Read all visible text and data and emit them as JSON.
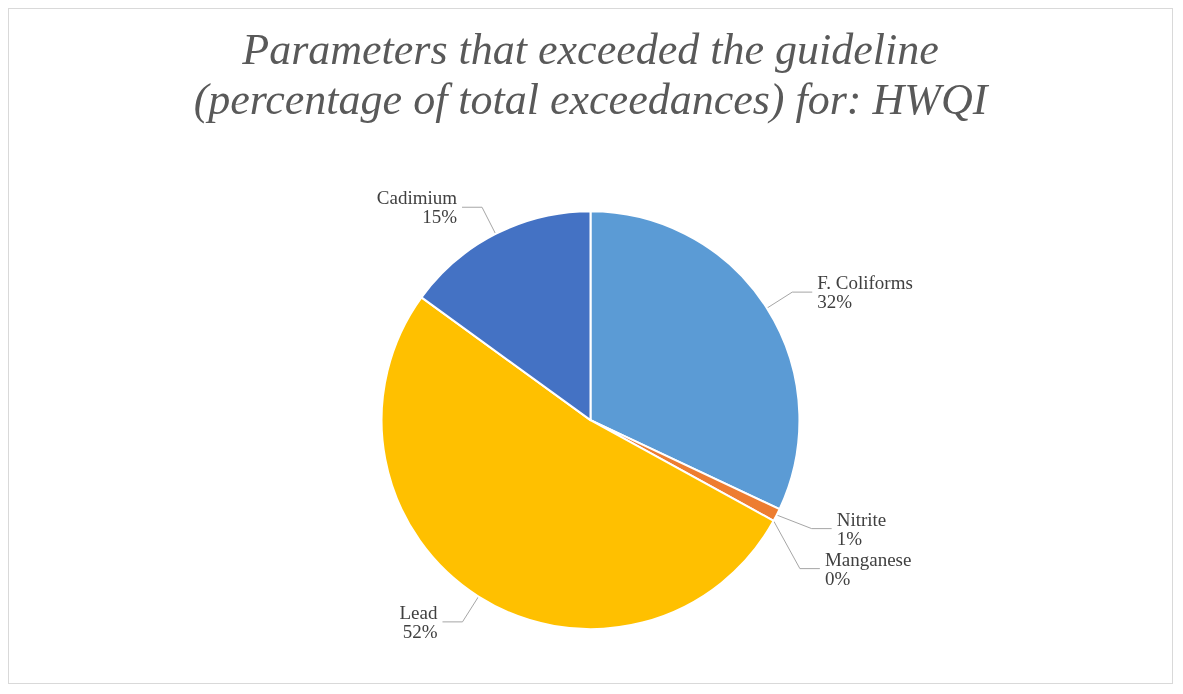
{
  "chart_data": {
    "type": "pie",
    "title": "Parameters that exceeded the guideline\n(percentage of total exceedances) for: HWQI",
    "categories": [
      "F. Coliforms",
      "Nitrite",
      "Manganese",
      "Lead",
      "Cadimium"
    ],
    "values": [
      32,
      1,
      0,
      52,
      15
    ],
    "value_labels": [
      "32%",
      "1%",
      "0%",
      "52%",
      "15%"
    ],
    "colors": [
      "#5b9bd5",
      "#ed7d31",
      "#a5a5a5",
      "#ffc000",
      "#4472c4"
    ],
    "legend": false
  }
}
